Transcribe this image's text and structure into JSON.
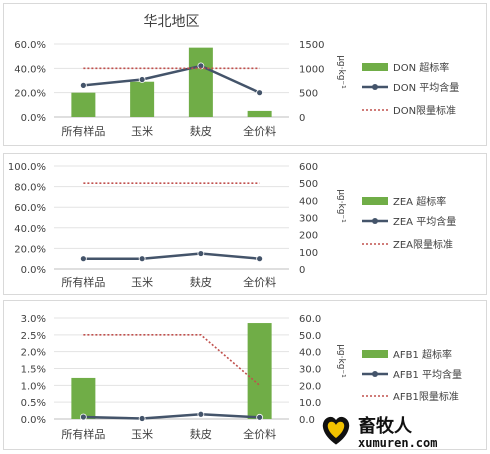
{
  "chart_data": [
    {
      "type": "bar",
      "title": "华北地区",
      "categories": [
        "所有样品",
        "玉米",
        "麸皮",
        "全价料"
      ],
      "ylim": [
        0,
        0.6
      ],
      "y2lim": [
        0,
        1500
      ],
      "y_ticks": [
        "0.0%",
        "20.0%",
        "40.0%",
        "60.0%"
      ],
      "y2_ticks": [
        "0",
        "500",
        "1000",
        "1500"
      ],
      "y2label": "μg·kg⁻¹",
      "legend_position": "right",
      "series": [
        {
          "name": "DON 超标率",
          "kind": "bar",
          "axis": "left",
          "color": "#70ad47",
          "values": [
            0.2,
            0.29,
            0.57,
            0.05
          ]
        },
        {
          "name": "DON 平均含量",
          "kind": "line",
          "axis": "right",
          "color": "#44546a",
          "values": [
            650,
            770,
            1050,
            500
          ]
        },
        {
          "name": "DON限量标准",
          "kind": "dotted",
          "axis": "right",
          "color": "#c0504d",
          "values": [
            1000,
            1000,
            1000,
            1000
          ]
        }
      ]
    },
    {
      "type": "bar",
      "title": "",
      "categories": [
        "所有样品",
        "玉米",
        "麸皮",
        "全价料"
      ],
      "ylim": [
        0,
        1.0
      ],
      "y2lim": [
        0,
        600
      ],
      "y_ticks": [
        "0.0%",
        "20.0%",
        "40.0%",
        "60.0%",
        "80.0%",
        "100.0%"
      ],
      "y2_ticks": [
        "0",
        "100",
        "200",
        "300",
        "400",
        "500",
        "600"
      ],
      "y2label": "μg·kg⁻¹",
      "legend_position": "right",
      "series": [
        {
          "name": "ZEA 超标率",
          "kind": "bar",
          "axis": "left",
          "color": "#70ad47",
          "values": [
            0,
            0,
            0,
            0
          ]
        },
        {
          "name": "ZEA 平均含量",
          "kind": "line",
          "axis": "right",
          "color": "#44546a",
          "values": [
            60,
            60,
            90,
            60
          ]
        },
        {
          "name": "ZEA限量标准",
          "kind": "dotted",
          "axis": "right",
          "color": "#c0504d",
          "values": [
            500,
            500,
            500,
            500
          ]
        }
      ]
    },
    {
      "type": "bar",
      "title": "",
      "categories": [
        "所有样品",
        "玉米",
        "麸皮",
        "全价料"
      ],
      "ylim": [
        0,
        0.03
      ],
      "y2lim": [
        0,
        60
      ],
      "y_ticks": [
        "0.0%",
        "0.5%",
        "1.0%",
        "1.5%",
        "2.0%",
        "2.5%",
        "3.0%"
      ],
      "y2_ticks": [
        "0.0",
        "10.0",
        "20.0",
        "30.0",
        "40.0",
        "50.0",
        "60.0"
      ],
      "y2label": "μg·kg⁻¹",
      "legend_position": "right",
      "series": [
        {
          "name": "AFB1 超标率",
          "kind": "bar",
          "axis": "left",
          "color": "#70ad47",
          "values": [
            0.0122,
            0,
            0,
            0.0285
          ]
        },
        {
          "name": "AFB1 平均含量",
          "kind": "line",
          "axis": "right",
          "color": "#44546a",
          "values": [
            1.2,
            0.3,
            2.8,
            1.0
          ]
        },
        {
          "name": "AFB1限量标准",
          "kind": "dotted",
          "axis": "right",
          "color": "#c0504d",
          "values": [
            50,
            50,
            50,
            20
          ]
        }
      ]
    }
  ],
  "watermark": {
    "name": "畜牧人",
    "url": "xumuren.com"
  }
}
